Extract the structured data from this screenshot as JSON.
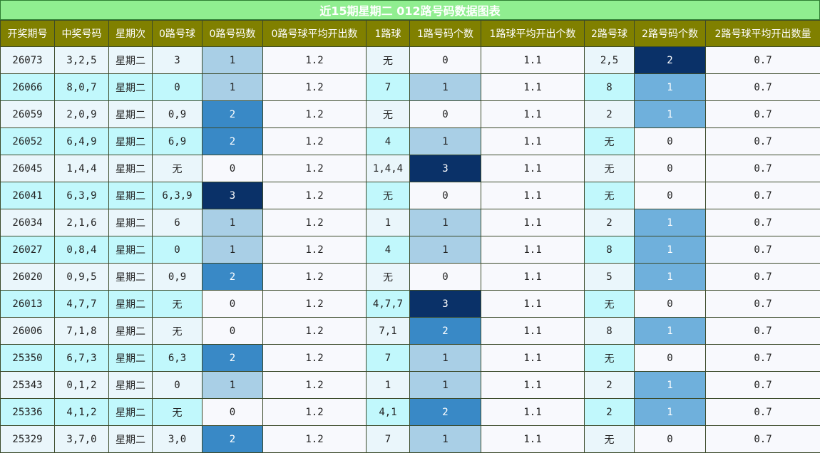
{
  "title": "近15期星期二 012路号码数据图表",
  "chart_data": {
    "type": "table",
    "columns": [
      "开奖期号",
      "中奖号码",
      "星期次",
      "0路号球",
      "0路号码数",
      "0路号球平均开出数",
      "1路球",
      "1路号码个数",
      "1路球平均开出个数",
      "2路号球",
      "2路号码个数",
      "2路号球平均开出数量"
    ],
    "rows": [
      [
        "26073",
        "3,2,5",
        "星期二",
        "3",
        "1",
        "1.2",
        "无",
        "0",
        "1.1",
        "2,5",
        "2",
        "0.7"
      ],
      [
        "26066",
        "8,0,7",
        "星期二",
        "0",
        "1",
        "1.2",
        "7",
        "1",
        "1.1",
        "8",
        "1",
        "0.7"
      ],
      [
        "26059",
        "2,0,9",
        "星期二",
        "0,9",
        "2",
        "1.2",
        "无",
        "0",
        "1.1",
        "2",
        "1",
        "0.7"
      ],
      [
        "26052",
        "6,4,9",
        "星期二",
        "6,9",
        "2",
        "1.2",
        "4",
        "1",
        "1.1",
        "无",
        "0",
        "0.7"
      ],
      [
        "26045",
        "1,4,4",
        "星期二",
        "无",
        "0",
        "1.2",
        "1,4,4",
        "3",
        "1.1",
        "无",
        "0",
        "0.7"
      ],
      [
        "26041",
        "6,3,9",
        "星期二",
        "6,3,9",
        "3",
        "1.2",
        "无",
        "0",
        "1.1",
        "无",
        "0",
        "0.7"
      ],
      [
        "26034",
        "2,1,6",
        "星期二",
        "6",
        "1",
        "1.2",
        "1",
        "1",
        "1.1",
        "2",
        "1",
        "0.7"
      ],
      [
        "26027",
        "0,8,4",
        "星期二",
        "0",
        "1",
        "1.2",
        "4",
        "1",
        "1.1",
        "8",
        "1",
        "0.7"
      ],
      [
        "26020",
        "0,9,5",
        "星期二",
        "0,9",
        "2",
        "1.2",
        "无",
        "0",
        "1.1",
        "5",
        "1",
        "0.7"
      ],
      [
        "26013",
        "4,7,7",
        "星期二",
        "无",
        "0",
        "1.2",
        "4,7,7",
        "3",
        "1.1",
        "无",
        "0",
        "0.7"
      ],
      [
        "26006",
        "7,1,8",
        "星期二",
        "无",
        "0",
        "1.2",
        "7,1",
        "2",
        "1.1",
        "8",
        "1",
        "0.7"
      ],
      [
        "25350",
        "6,7,3",
        "星期二",
        "6,3",
        "2",
        "1.2",
        "7",
        "1",
        "1.1",
        "无",
        "0",
        "0.7"
      ],
      [
        "25343",
        "0,1,2",
        "星期二",
        "0",
        "1",
        "1.2",
        "1",
        "1",
        "1.1",
        "2",
        "1",
        "0.7"
      ],
      [
        "25336",
        "4,1,2",
        "星期二",
        "无",
        "0",
        "1.2",
        "4,1",
        "2",
        "1.1",
        "2",
        "1",
        "0.7"
      ],
      [
        "25329",
        "3,7,0",
        "星期二",
        "3,0",
        "2",
        "1.2",
        "7",
        "1",
        "1.1",
        "无",
        "0",
        "0.7"
      ]
    ]
  }
}
